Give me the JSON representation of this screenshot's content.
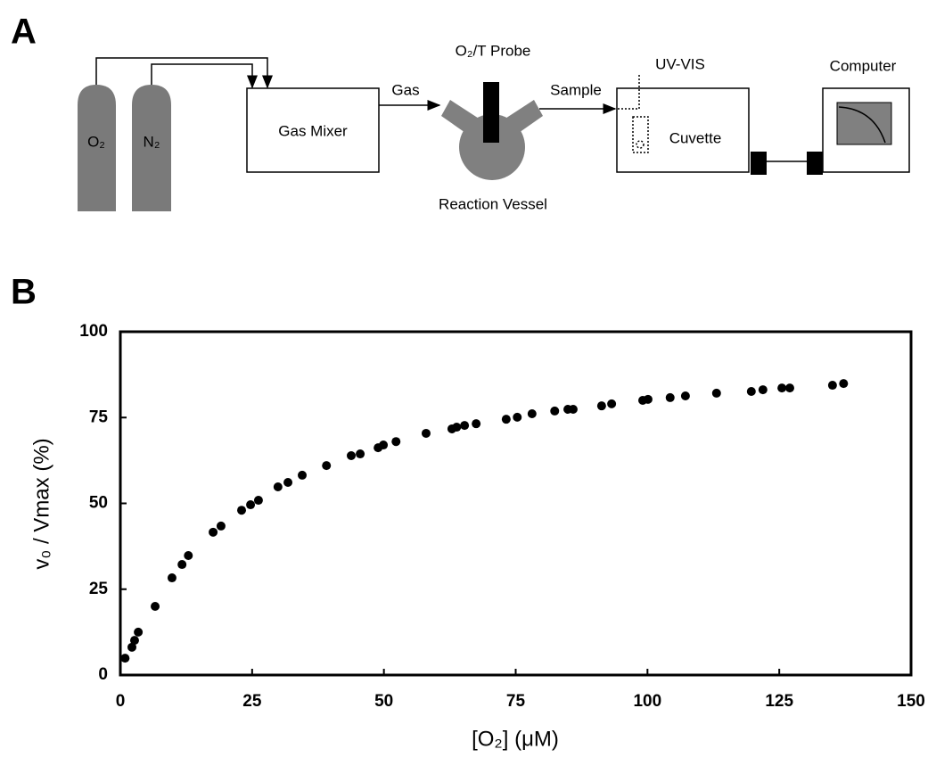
{
  "panels": {
    "a": "A",
    "b": "B"
  },
  "diagram": {
    "o2": "O₂",
    "n2": "N₂",
    "gas_mixer": "Gas Mixer",
    "gas": "Gas",
    "probe": "O₂/T Probe",
    "reaction_vessel": "Reaction Vessel",
    "sample": "Sample",
    "uv_vis": "UV-VIS",
    "cuvette": "Cuvette",
    "computer": "Computer"
  },
  "chart_data": {
    "type": "scatter",
    "color": "#000000",
    "x_label": "[O₂] (μM)",
    "y_label": "v₀ / Vmax (%)",
    "x": [
      0.9,
      2.2,
      2.7,
      3.4,
      6.6,
      9.8,
      11.7,
      12.9,
      17.6,
      19.1,
      23.0,
      24.7,
      26.2,
      29.9,
      31.8,
      34.5,
      39.1,
      43.8,
      45.5,
      48.9,
      49.9,
      52.3,
      58.0,
      62.9,
      63.8,
      65.3,
      67.5,
      73.2,
      75.3,
      78.1,
      82.4,
      84.9,
      85.9,
      91.3,
      93.2,
      99.1,
      100.1,
      104.3,
      107.2,
      113.1,
      119.7,
      121.9,
      125.5,
      127.0,
      135.1,
      137.2
    ],
    "values": [
      4.9,
      8.1,
      10.1,
      12.5,
      20.0,
      28.3,
      32.2,
      34.8,
      41.6,
      43.4,
      48.0,
      49.6,
      50.9,
      54.8,
      56.1,
      58.2,
      61.0,
      63.9,
      64.4,
      66.2,
      67.0,
      68.0,
      70.4,
      71.7,
      72.2,
      72.7,
      73.2,
      74.5,
      75.1,
      76.1,
      76.9,
      77.4,
      77.4,
      78.4,
      79.0,
      80.0,
      80.3,
      80.8,
      81.3,
      82.1,
      82.6,
      83.1,
      83.6,
      83.6,
      84.4,
      84.9
    ],
    "xlim": [
      0,
      150
    ],
    "ylim": [
      0,
      100
    ],
    "xticks": [
      0,
      25,
      50,
      75,
      100,
      125,
      150
    ],
    "yticks": [
      0,
      25,
      50,
      75,
      100
    ]
  }
}
